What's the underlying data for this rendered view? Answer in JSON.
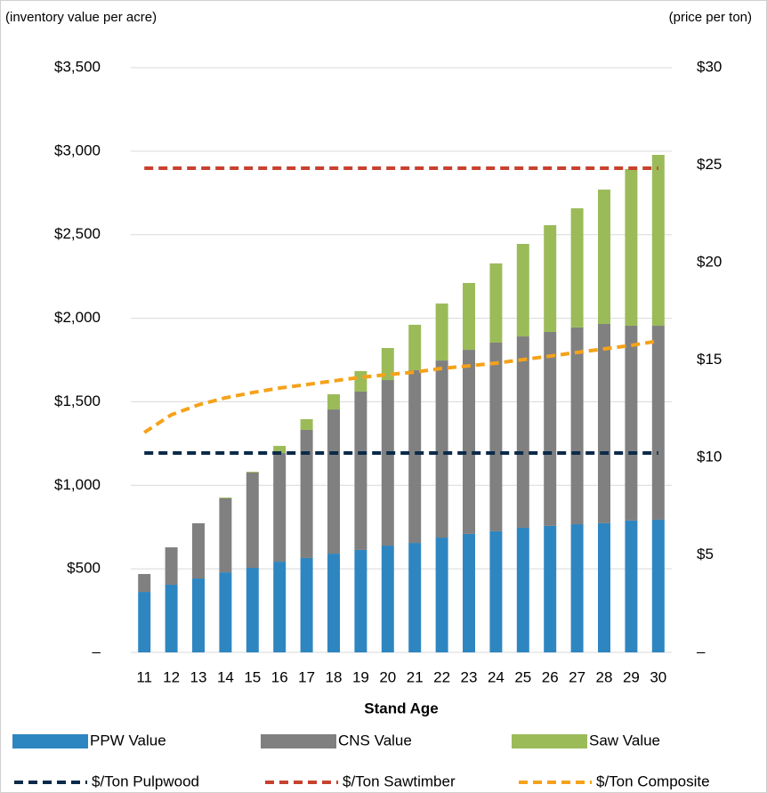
{
  "chart_data": {
    "type": "bar",
    "y_label": "(inventory value per acre)",
    "y2_label": "(price per ton)",
    "x_label": "Stand Age",
    "categories": [
      "11",
      "12",
      "13",
      "14",
      "15",
      "16",
      "17",
      "18",
      "19",
      "20",
      "21",
      "22",
      "23",
      "24",
      "25",
      "26",
      "27",
      "28",
      "29",
      "30"
    ],
    "stacked": true,
    "series": [
      {
        "name": "PPW Value",
        "color": "#2e86c1",
        "type": "bar",
        "values": [
          362,
          405,
          442,
          479,
          506,
          543,
          565,
          591,
          613,
          639,
          655,
          687,
          709,
          725,
          746,
          757,
          767,
          773,
          789,
          794
        ]
      },
      {
        "name": "CNS Value",
        "color": "#808080",
        "type": "bar",
        "values": [
          107,
          224,
          331,
          443,
          570,
          650,
          767,
          863,
          948,
          991,
          1034,
          1060,
          1102,
          1129,
          1145,
          1161,
          1178,
          1193,
          1166,
          1161
        ]
      },
      {
        "name": "Saw Value",
        "color": "#9bbb59",
        "type": "bar",
        "values": [
          0,
          0,
          0,
          5,
          5,
          43,
          64,
          91,
          123,
          192,
          272,
          341,
          400,
          474,
          554,
          639,
          713,
          804,
          938,
          1023
        ]
      },
      {
        "name": "$/Ton Pulpwood",
        "color": "#0b2a4a",
        "type": "line",
        "axis": "y2",
        "values": [
          10.23,
          10.23,
          10.23,
          10.23,
          10.23,
          10.23,
          10.23,
          10.23,
          10.23,
          10.23,
          10.23,
          10.23,
          10.23,
          10.23,
          10.23,
          10.23,
          10.23,
          10.23,
          10.23,
          10.23
        ]
      },
      {
        "name": "$/Ton Sawtimber",
        "color": "#c8412f",
        "type": "line",
        "axis": "y2",
        "values": [
          24.84,
          24.84,
          24.84,
          24.84,
          24.84,
          24.84,
          24.84,
          24.84,
          24.84,
          24.84,
          24.84,
          24.84,
          24.84,
          24.84,
          24.84,
          24.84,
          24.84,
          24.84,
          24.84,
          24.84
        ]
      },
      {
        "name": "$/Ton Composite",
        "color": "#f5a21a",
        "type": "line",
        "axis": "y2",
        "values": [
          11.28,
          12.19,
          12.7,
          13.06,
          13.33,
          13.56,
          13.74,
          13.93,
          14.11,
          14.25,
          14.38,
          14.57,
          14.7,
          14.84,
          15.02,
          15.2,
          15.39,
          15.57,
          15.75,
          15.98
        ]
      }
    ],
    "ylim": [
      0,
      3500
    ],
    "yticks": [
      {
        "value": 0,
        "label": "–"
      },
      {
        "value": 500,
        "label": "$500"
      },
      {
        "value": 1000,
        "label": "$1,000"
      },
      {
        "value": 1500,
        "label": "$1,500"
      },
      {
        "value": 2000,
        "label": "$2,000"
      },
      {
        "value": 2500,
        "label": "$2,500"
      },
      {
        "value": 3000,
        "label": "$3,000"
      },
      {
        "value": 3500,
        "label": "$3,500"
      }
    ],
    "y2lim": [
      0,
      30
    ],
    "y2ticks": [
      {
        "value": 0,
        "label": "–"
      },
      {
        "value": 5,
        "label": "$5"
      },
      {
        "value": 10,
        "label": "$10"
      },
      {
        "value": 15,
        "label": "$15"
      },
      {
        "value": 20,
        "label": "$20"
      },
      {
        "value": 25,
        "label": "$25"
      },
      {
        "value": 30,
        "label": "$30"
      }
    ],
    "grid": true,
    "legend": "bottom"
  }
}
